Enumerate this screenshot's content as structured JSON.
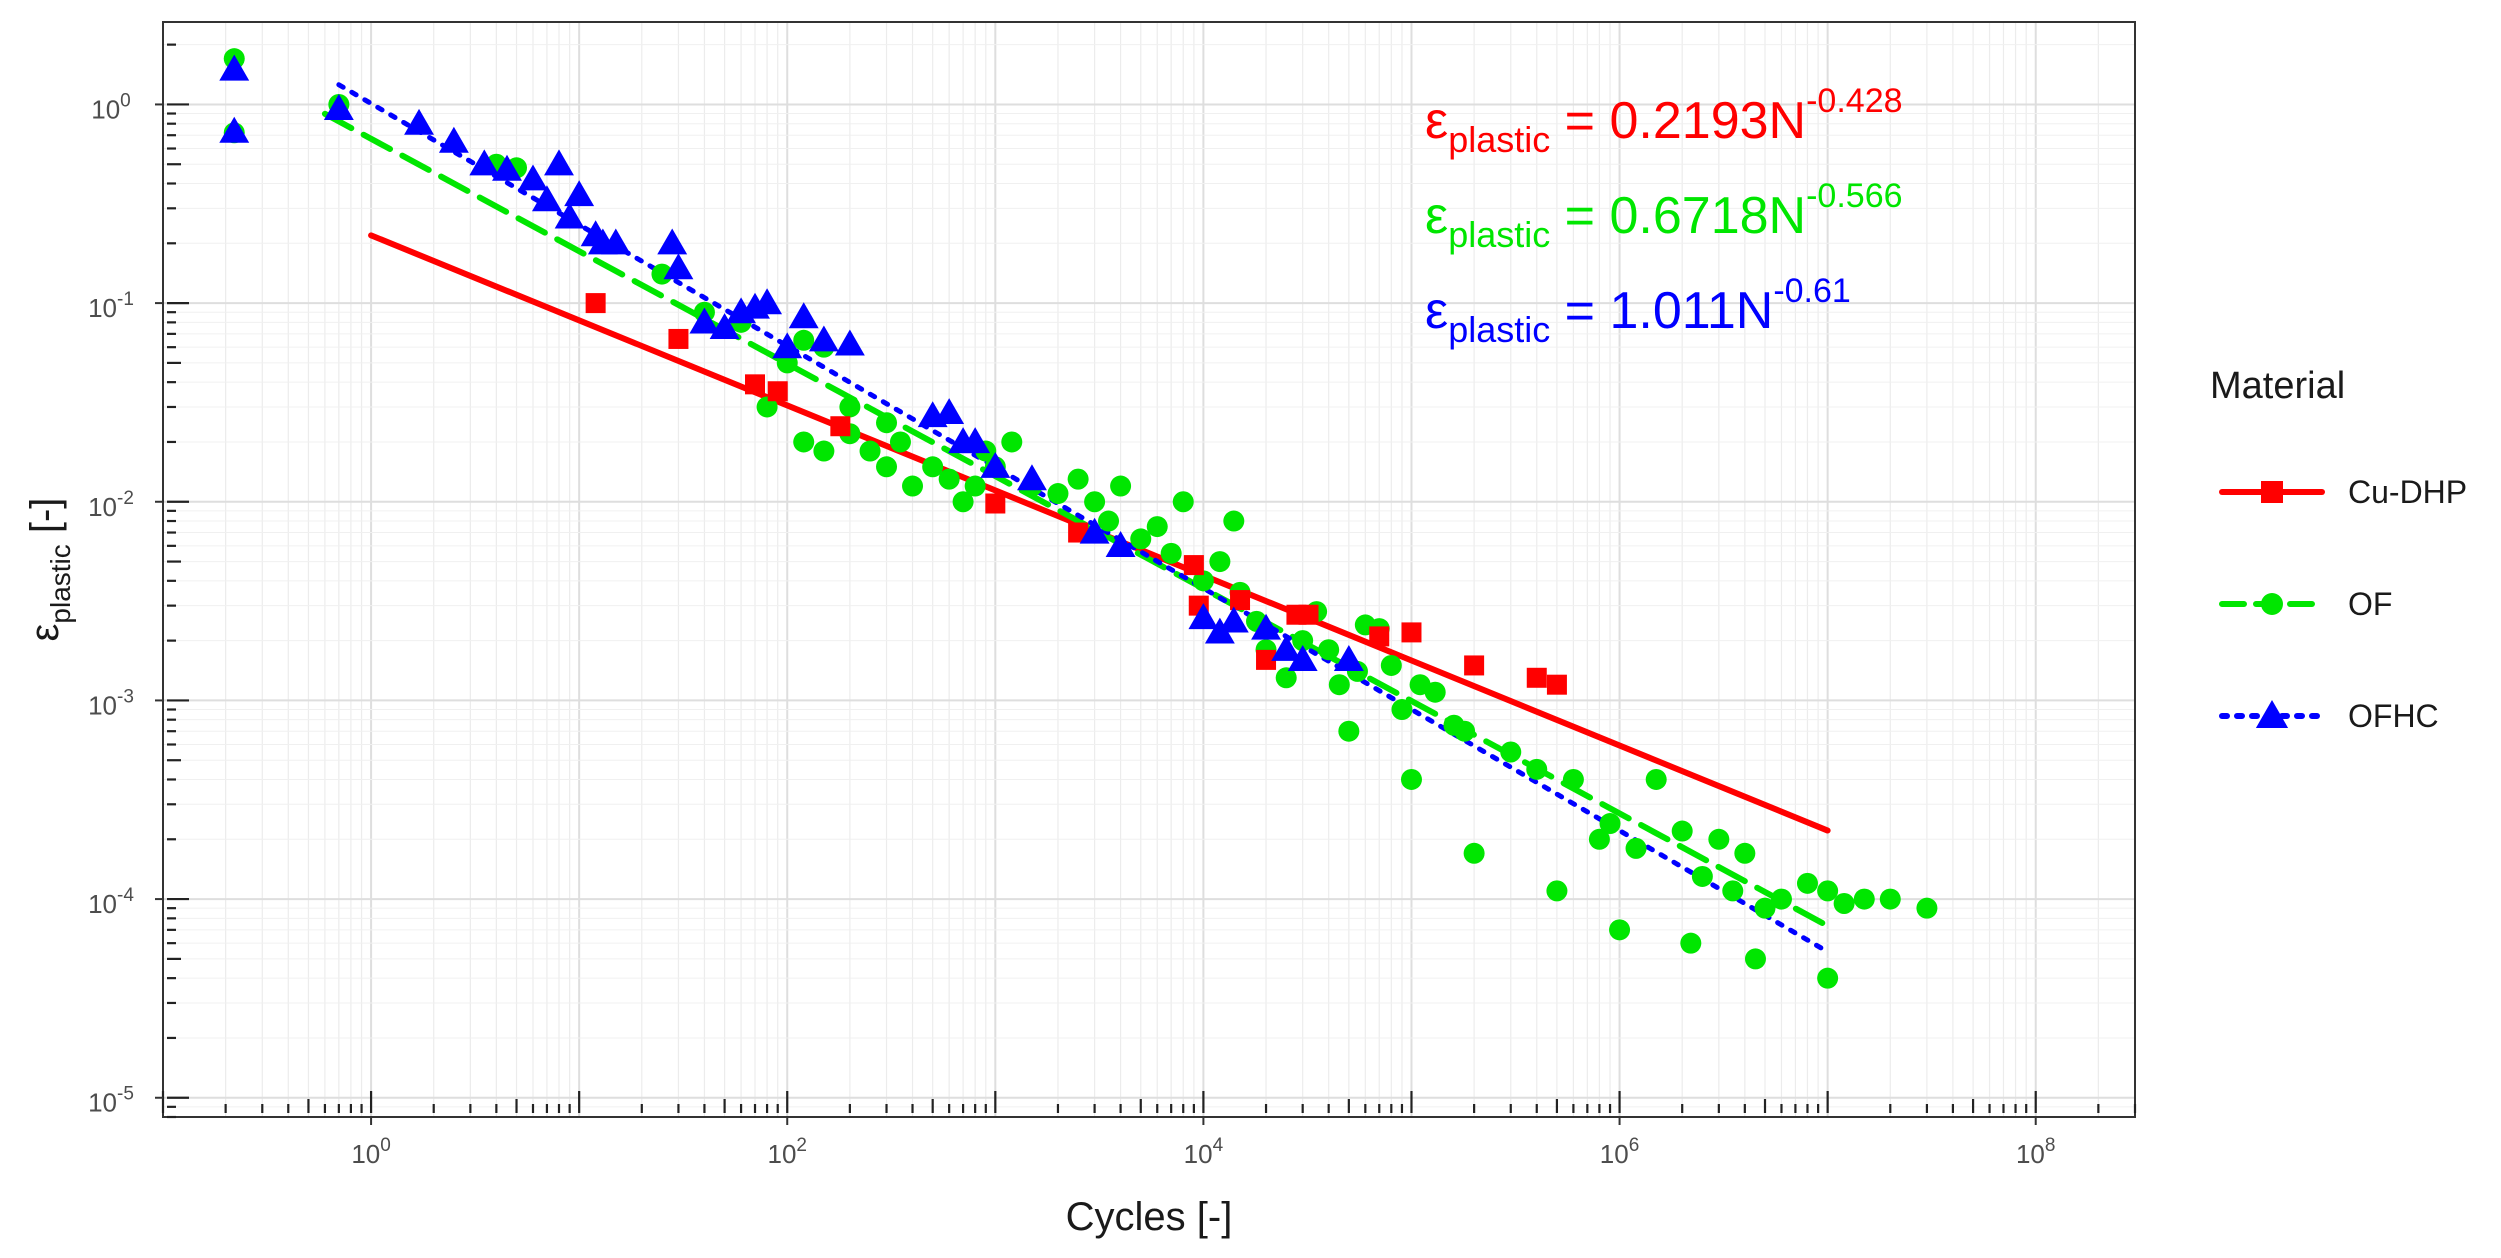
{
  "chart_data": {
    "type": "scatter",
    "title": "",
    "xlabel": "Cycles [-]",
    "ylabel": {
      "base": "ε",
      "sub": "plastic",
      "suffix": " [-]"
    },
    "xscale": "log",
    "yscale": "log",
    "xlim": [
      0.1,
      300000000
    ],
    "ylim": [
      8e-06,
      2.6
    ],
    "x_ticks": [
      {
        "exp": "0"
      },
      {
        "exp": "2"
      },
      {
        "exp": "4"
      },
      {
        "exp": "6"
      },
      {
        "exp": "8"
      }
    ],
    "y_ticks": [
      {
        "exp": "0"
      },
      {
        "exp": "-1"
      },
      {
        "exp": "-2"
      },
      {
        "exp": "-3"
      },
      {
        "exp": "-4"
      },
      {
        "exp": "-5"
      }
    ],
    "tick_base": "10",
    "grid": true,
    "legend": {
      "title": "Material",
      "position": "right",
      "entries": [
        {
          "label": "Cu-DHP",
          "series": 0
        },
        {
          "label": "OF",
          "series": 1
        },
        {
          "label": "OFHC",
          "series": 2
        }
      ]
    },
    "series": [
      {
        "name": "Cu-DHP",
        "color": "#ff0000",
        "marker": "square",
        "line": "solid",
        "fit": {
          "a": 0.2193,
          "b": -0.428,
          "x_range": [
            1,
            10000000
          ]
        },
        "equation": {
          "lhs": "ε",
          "sub": "plastic",
          "eq": " = 0.2193N",
          "sup": "-0.428"
        },
        "points": [
          [
            12,
            0.1
          ],
          [
            30,
            0.066
          ],
          [
            70,
            0.039
          ],
          [
            90,
            0.036
          ],
          [
            180,
            0.024
          ],
          [
            1000,
            0.0098
          ],
          [
            2500,
            0.007
          ],
          [
            9000,
            0.0048
          ],
          [
            9500,
            0.003
          ],
          [
            15000,
            0.0032
          ],
          [
            20000,
            0.0016
          ],
          [
            28000,
            0.0027
          ],
          [
            32000,
            0.0027
          ],
          [
            70000,
            0.0021
          ],
          [
            100000,
            0.0022
          ],
          [
            200000,
            0.0015
          ],
          [
            400000,
            0.0013
          ],
          [
            500000,
            0.0012
          ]
        ]
      },
      {
        "name": "OF",
        "color": "#00e600",
        "marker": "circle",
        "line": "dashed",
        "fit": {
          "a": 0.6718,
          "b": -0.566,
          "x_range": [
            0.6,
            10000000
          ]
        },
        "equation": {
          "lhs": "ε",
          "sub": "plastic",
          "eq": " = 0.6718N",
          "sup": "-0.566"
        },
        "points": [
          [
            0.22,
            1.7
          ],
          [
            0.22,
            0.72
          ],
          [
            0.7,
            1.0
          ],
          [
            4,
            0.5
          ],
          [
            5,
            0.48
          ],
          [
            25,
            0.14
          ],
          [
            40,
            0.09
          ],
          [
            60,
            0.08
          ],
          [
            80,
            0.03
          ],
          [
            100,
            0.05
          ],
          [
            120,
            0.065
          ],
          [
            150,
            0.06
          ],
          [
            200,
            0.03
          ],
          [
            250,
            0.018
          ],
          [
            300,
            0.025
          ],
          [
            350,
            0.02
          ],
          [
            120,
            0.02
          ],
          [
            150,
            0.018
          ],
          [
            200,
            0.022
          ],
          [
            300,
            0.015
          ],
          [
            400,
            0.012
          ],
          [
            500,
            0.015
          ],
          [
            600,
            0.013
          ],
          [
            700,
            0.01
          ],
          [
            800,
            0.012
          ],
          [
            900,
            0.018
          ],
          [
            1000,
            0.015
          ],
          [
            1200,
            0.02
          ],
          [
            1500,
            0.012
          ],
          [
            2000,
            0.011
          ],
          [
            2500,
            0.013
          ],
          [
            3000,
            0.01
          ],
          [
            3500,
            0.008
          ],
          [
            4000,
            0.012
          ],
          [
            5000,
            0.0065
          ],
          [
            6000,
            0.0075
          ],
          [
            7000,
            0.0055
          ],
          [
            8000,
            0.01
          ],
          [
            10000,
            0.004
          ],
          [
            12000,
            0.005
          ],
          [
            14000,
            0.008
          ],
          [
            15000,
            0.0035
          ],
          [
            18000,
            0.0025
          ],
          [
            20000,
            0.0018
          ],
          [
            25000,
            0.0013
          ],
          [
            30000,
            0.002
          ],
          [
            35000,
            0.0028
          ],
          [
            40000,
            0.0018
          ],
          [
            45000,
            0.0012
          ],
          [
            50000,
            0.0007
          ],
          [
            55000,
            0.0014
          ],
          [
            60000,
            0.0024
          ],
          [
            70000,
            0.0023
          ],
          [
            80000,
            0.0015
          ],
          [
            90000,
            0.0009
          ],
          [
            100000,
            0.0004
          ],
          [
            110000,
            0.0012
          ],
          [
            130000,
            0.0011
          ],
          [
            160000,
            0.00075
          ],
          [
            180000,
            0.0007
          ],
          [
            200000,
            0.00017
          ],
          [
            300000,
            0.00055
          ],
          [
            400000,
            0.00045
          ],
          [
            500000,
            0.00011
          ],
          [
            600000,
            0.0004
          ],
          [
            800000,
            0.0002
          ],
          [
            900000,
            0.00024
          ],
          [
            1000000,
            7e-05
          ],
          [
            1200000,
            0.00018
          ],
          [
            1500000,
            0.0004
          ],
          [
            2000000,
            0.00022
          ],
          [
            2200000,
            6e-05
          ],
          [
            2500000,
            0.00013
          ],
          [
            3000000,
            0.0002
          ],
          [
            3500000,
            0.00011
          ],
          [
            4000000,
            0.00017
          ],
          [
            4500000,
            5e-05
          ],
          [
            5000000,
            9e-05
          ],
          [
            6000000,
            0.0001
          ],
          [
            8000000,
            0.00012
          ],
          [
            10000000,
            4e-05
          ],
          [
            10000000,
            0.00011
          ],
          [
            12000000,
            9.5e-05
          ],
          [
            15000000,
            0.0001
          ],
          [
            20000000,
            0.0001
          ],
          [
            30000000,
            9e-05
          ]
        ]
      },
      {
        "name": "OFHC",
        "color": "#0000ff",
        "marker": "triangle",
        "line": "dotted",
        "fit": {
          "a": 1.011,
          "b": -0.61,
          "x_range": [
            0.7,
            10000000
          ]
        },
        "equation": {
          "lhs": "ε",
          "sub": "plastic",
          "eq": " = 1.011N",
          "sup": "-0.61"
        },
        "points": [
          [
            0.22,
            1.5
          ],
          [
            0.22,
            0.73
          ],
          [
            0.7,
            0.95
          ],
          [
            1.7,
            0.8
          ],
          [
            2.5,
            0.65
          ],
          [
            3.5,
            0.5
          ],
          [
            4.5,
            0.47
          ],
          [
            6,
            0.42
          ],
          [
            7,
            0.33
          ],
          [
            8,
            0.5
          ],
          [
            9,
            0.27
          ],
          [
            10,
            0.35
          ],
          [
            12,
            0.22
          ],
          [
            13,
            0.2
          ],
          [
            15,
            0.2
          ],
          [
            28,
            0.2
          ],
          [
            30,
            0.15
          ],
          [
            40,
            0.08
          ],
          [
            50,
            0.075
          ],
          [
            60,
            0.09
          ],
          [
            70,
            0.095
          ],
          [
            80,
            0.1
          ],
          [
            100,
            0.06
          ],
          [
            120,
            0.085
          ],
          [
            150,
            0.065
          ],
          [
            200,
            0.062
          ],
          [
            500,
            0.027
          ],
          [
            600,
            0.028
          ],
          [
            700,
            0.02
          ],
          [
            800,
            0.02
          ],
          [
            1000,
            0.015
          ],
          [
            1500,
            0.013
          ],
          [
            3000,
            0.007
          ],
          [
            4000,
            0.006
          ],
          [
            10000,
            0.0026
          ],
          [
            12000,
            0.0022
          ],
          [
            14000,
            0.0025
          ],
          [
            20000,
            0.0023
          ],
          [
            25000,
            0.0018
          ],
          [
            30000,
            0.0016
          ],
          [
            50000,
            0.0016
          ]
        ]
      }
    ]
  }
}
